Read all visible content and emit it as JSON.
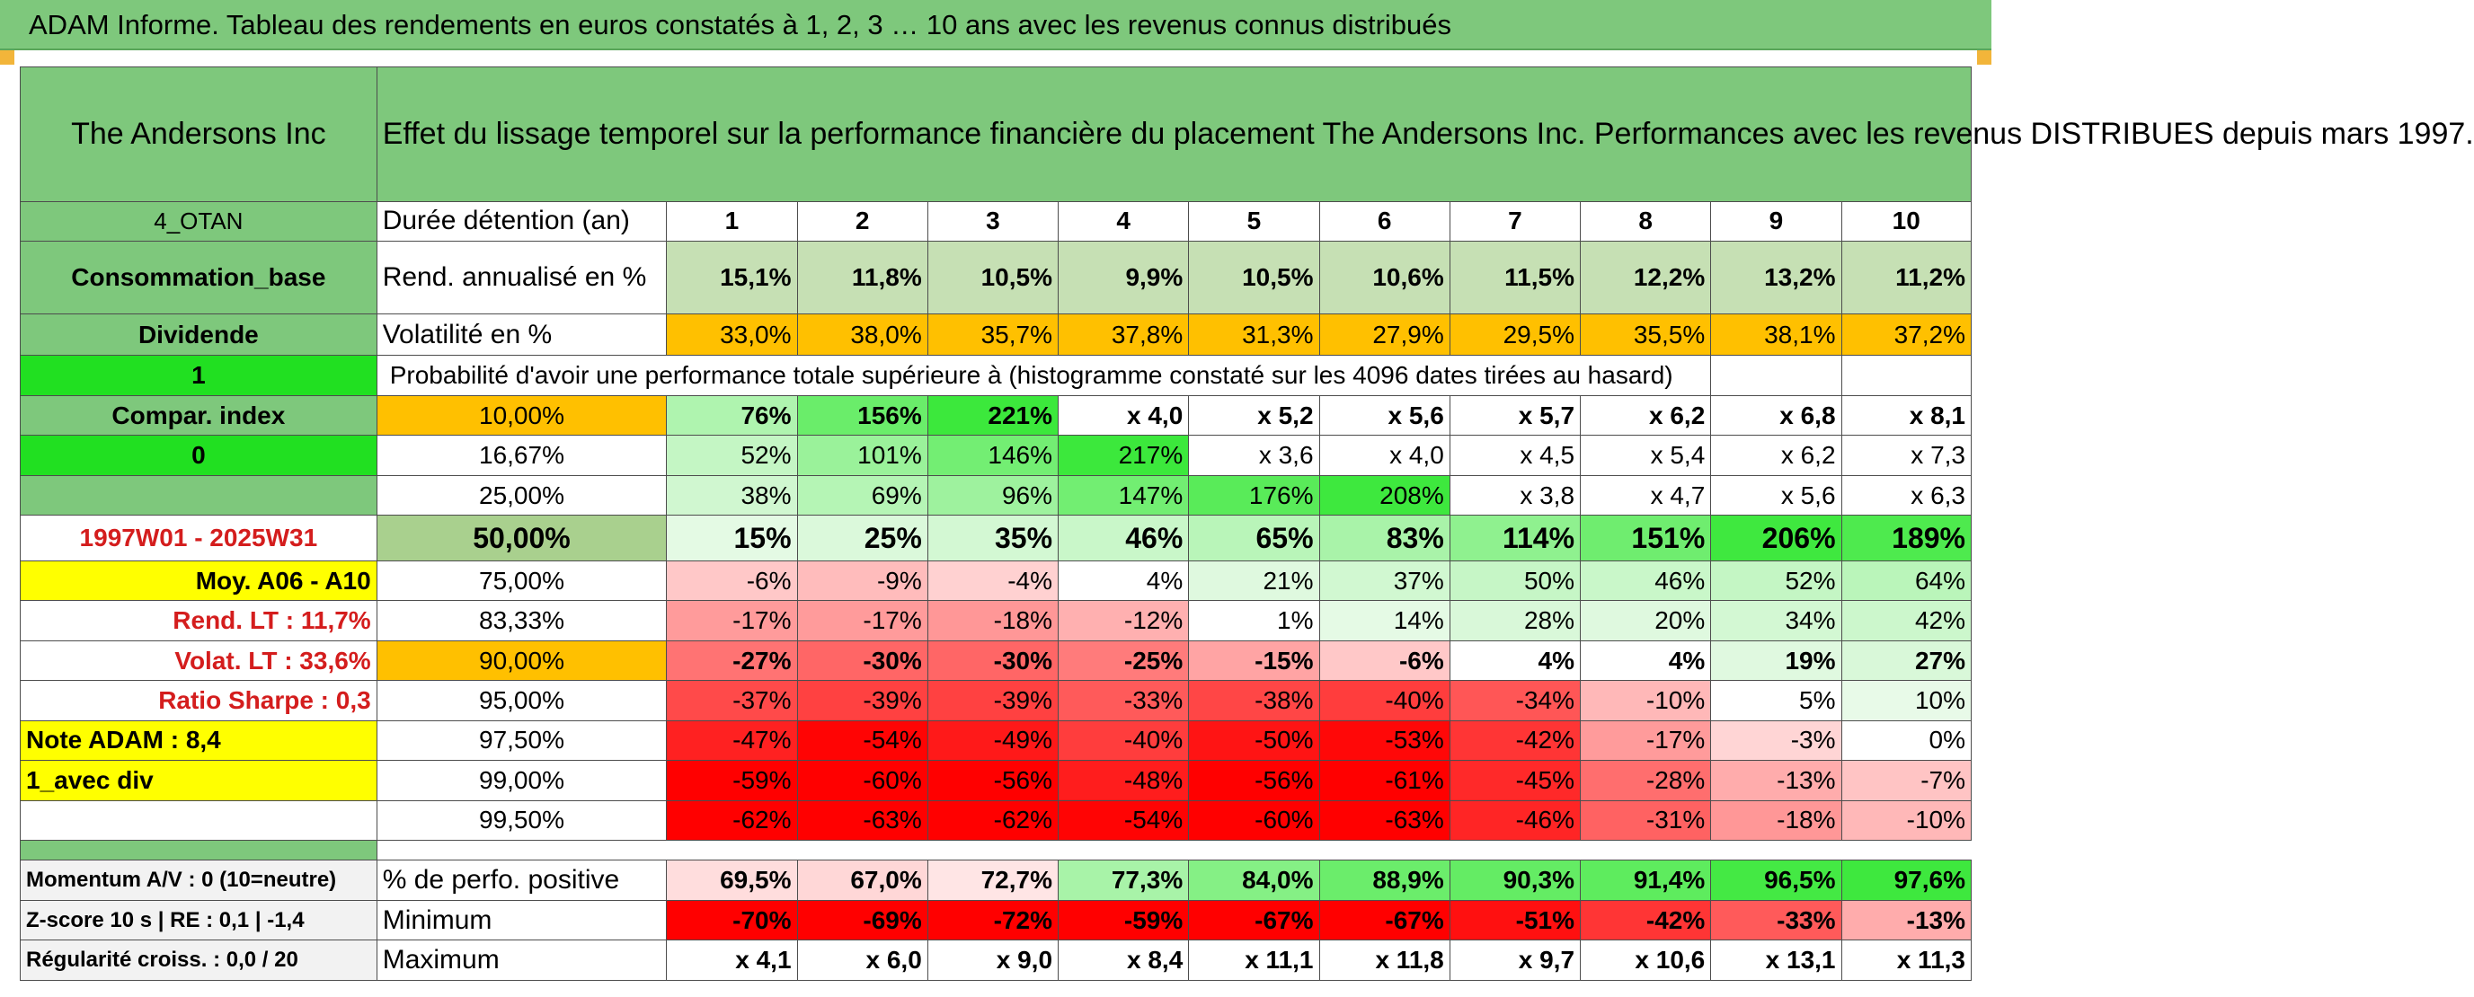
{
  "banner": "ADAM Informe. Tableau des rendements en euros constatés à 1, 2, 3 … 10 ans avec les revenus connus distribués",
  "fund_name": "The Andersons Inc",
  "header_text": "Effet du lissage temporel sur la performance financière du placement The Andersons Inc. Performances avec les revenus DISTRIBUES depuis mars 1997.",
  "duration": {
    "side": "4_OTAN",
    "label": "Durée détention (an)",
    "years": [
      "1",
      "2",
      "3",
      "4",
      "5",
      "6",
      "7",
      "8",
      "9",
      "10"
    ]
  },
  "annualized": {
    "side": "Consommation_base",
    "label": "Rend. annualisé en %",
    "values": [
      "15,1%",
      "11,8%",
      "10,5%",
      "9,9%",
      "10,5%",
      "10,6%",
      "11,5%",
      "12,2%",
      "13,2%",
      "11,2%"
    ]
  },
  "volatility": {
    "side": "Dividende",
    "label": "Volatilité en %",
    "values": [
      "33,0%",
      "38,0%",
      "35,7%",
      "37,8%",
      "31,3%",
      "27,9%",
      "29,5%",
      "35,5%",
      "38,1%",
      "37,2%"
    ]
  },
  "prob_row": {
    "side": "1",
    "label": "Probabilité d'avoir une performance totale supérieure à (histogramme constaté sur les 4096 dates tirées au hasard)"
  },
  "quantile_rows": [
    {
      "side": "Compar. index",
      "pct": "10,00%",
      "values": [
        "76%",
        "156%",
        "221%",
        "x 4,0",
        "x 5,2",
        "x 5,6",
        "x 5,7",
        "x 6,2",
        "x 6,8",
        "x 8,1"
      ]
    },
    {
      "side": "0",
      "pct": "16,67%",
      "values": [
        "52%",
        "101%",
        "146%",
        "217%",
        "x 3,6",
        "x 4,0",
        "x 4,5",
        "x 5,4",
        "x 6,2",
        "x 7,3"
      ]
    },
    {
      "side": "",
      "pct": "25,00%",
      "values": [
        "38%",
        "69%",
        "96%",
        "147%",
        "176%",
        "208%",
        "x 3,8",
        "x 4,7",
        "x 5,6",
        "x 6,3"
      ]
    },
    {
      "side": "1997W01 - 2025W31",
      "pct": "50,00%",
      "values": [
        "15%",
        "25%",
        "35%",
        "46%",
        "65%",
        "83%",
        "114%",
        "151%",
        "206%",
        "189%"
      ]
    },
    {
      "side": "Moy. A06 - A10",
      "pct": "75,00%",
      "values": [
        "-6%",
        "-9%",
        "-4%",
        "4%",
        "21%",
        "37%",
        "50%",
        "46%",
        "52%",
        "64%"
      ]
    },
    {
      "side": "Rend. LT :   11,7%",
      "pct": "83,33%",
      "values": [
        "-17%",
        "-17%",
        "-18%",
        "-12%",
        "1%",
        "14%",
        "28%",
        "20%",
        "34%",
        "42%"
      ]
    },
    {
      "side": "Volat. LT :   33,6%",
      "pct": "90,00%",
      "values": [
        "-27%",
        "-30%",
        "-30%",
        "-25%",
        "-15%",
        "-6%",
        "4%",
        "4%",
        "19%",
        "27%"
      ]
    },
    {
      "side": "Ratio Sharpe :   0,3",
      "pct": "95,00%",
      "values": [
        "-37%",
        "-39%",
        "-39%",
        "-33%",
        "-38%",
        "-40%",
        "-34%",
        "-10%",
        "5%",
        "10%"
      ]
    },
    {
      "side": "Note ADAM : 8,4",
      "pct": "97,50%",
      "values": [
        "-47%",
        "-54%",
        "-49%",
        "-40%",
        "-50%",
        "-53%",
        "-42%",
        "-17%",
        "-3%",
        "0%"
      ]
    },
    {
      "side": "1_avec div",
      "pct": "99,00%",
      "values": [
        "-59%",
        "-60%",
        "-56%",
        "-48%",
        "-56%",
        "-61%",
        "-45%",
        "-28%",
        "-13%",
        "-7%"
      ]
    },
    {
      "side": "",
      "pct": "99,50%",
      "values": [
        "-62%",
        "-63%",
        "-62%",
        "-54%",
        "-60%",
        "-63%",
        "-46%",
        "-31%",
        "-18%",
        "-10%"
      ]
    }
  ],
  "stats_rows": [
    {
      "side": "Momentum A/V : 0 (10=neutre)",
      "label": "% de perfo. positive",
      "values": [
        "69,5%",
        "67,0%",
        "72,7%",
        "77,3%",
        "84,0%",
        "88,9%",
        "90,3%",
        "91,4%",
        "96,5%",
        "97,6%"
      ]
    },
    {
      "side": "Z-score 10 s | RE : 0,1 | -1,4",
      "label": "Minimum",
      "values": [
        "-70%",
        "-69%",
        "-72%",
        "-59%",
        "-67%",
        "-67%",
        "-51%",
        "-42%",
        "-33%",
        "-13%"
      ]
    },
    {
      "side": "Régularité croiss. : 0,0 / 20",
      "label": "Maximum",
      "values": [
        "x 4,1",
        "x 6,0",
        "x 9,0",
        "x 8,4",
        "x 11,1",
        "x 11,8",
        "x 9,7",
        "x 10,6",
        "x 13,1",
        "x 11,3"
      ]
    }
  ],
  "colors": {
    "header_green": "#7ec87c",
    "highlight_green": "#21e021",
    "yellow": "#ffff00",
    "orange": "#ffc000",
    "red_text": "#d41d1d"
  }
}
